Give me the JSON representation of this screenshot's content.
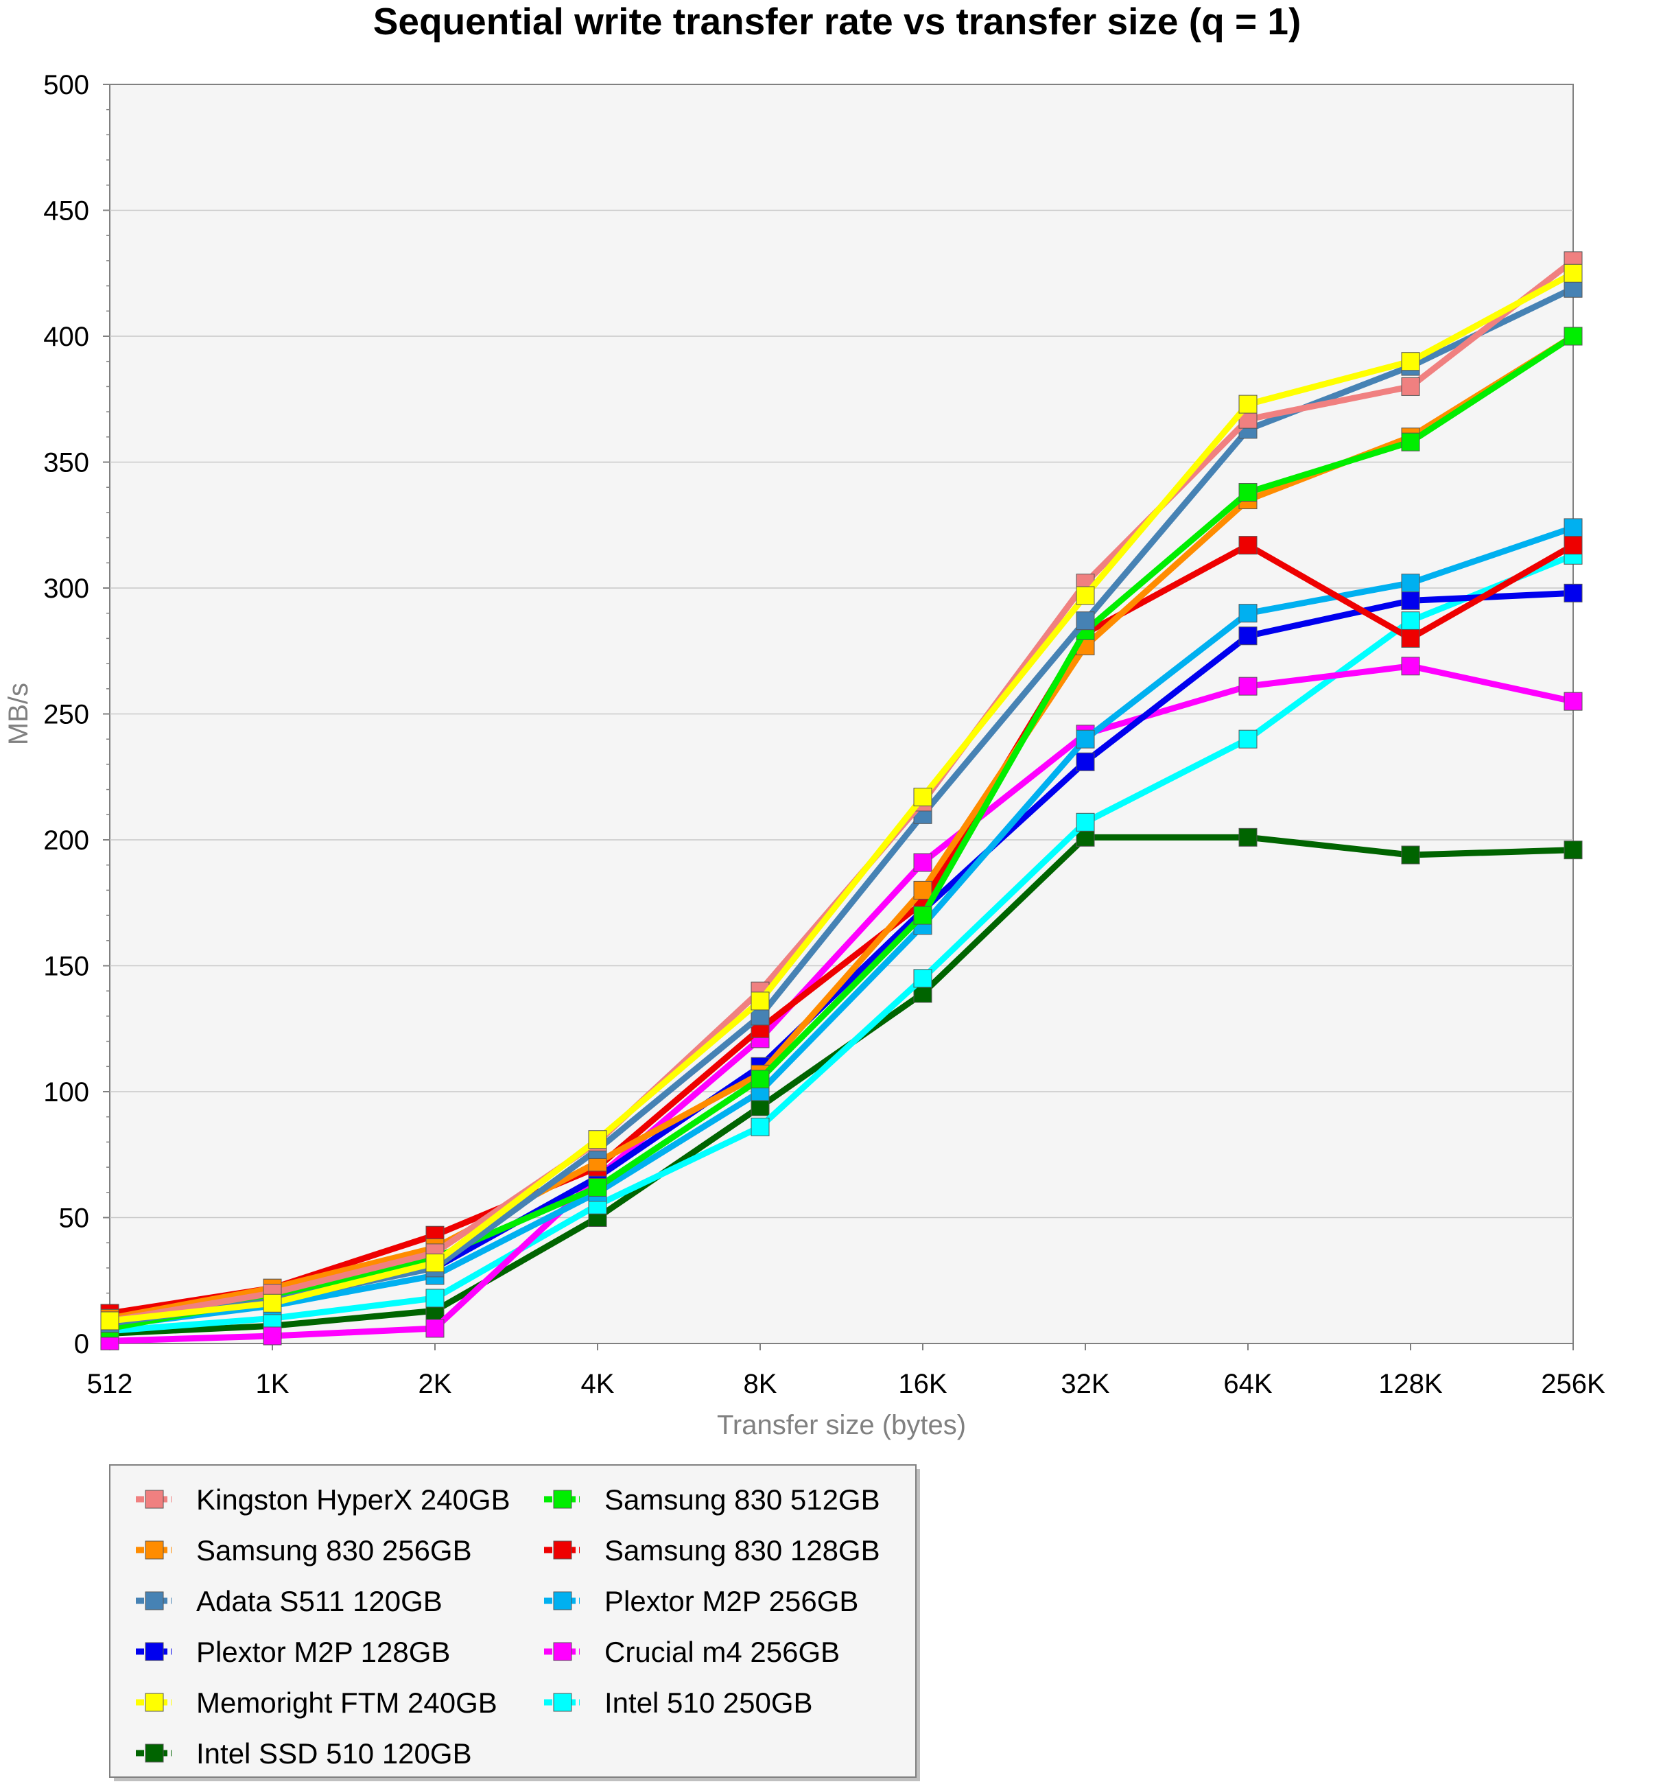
{
  "chart_data": {
    "type": "line",
    "title": "Sequential write transfer rate vs transfer size (q = 1)",
    "xlabel": "Transfer size (bytes)",
    "ylabel": "MB/s",
    "categories": [
      "512",
      "1K",
      "2K",
      "4K",
      "8K",
      "16K",
      "32K",
      "64K",
      "128K",
      "256K"
    ],
    "ylim": [
      0,
      500
    ],
    "yticks": [
      "0",
      "50",
      "100",
      "150",
      "200",
      "250",
      "300",
      "350",
      "400",
      "450",
      "500"
    ],
    "grid": "horizontal",
    "legend_position": "bottom-left",
    "series": [
      {
        "name": "Kingston HyperX 240GB",
        "color": "#F08080",
        "values": [
          9,
          20,
          36,
          80,
          140,
          215,
          302,
          367,
          380,
          430
        ]
      },
      {
        "name": "Samsung 830 512GB",
        "color": "#00EE00",
        "values": [
          6,
          18,
          34,
          62,
          105,
          170,
          283,
          338,
          358,
          400
        ]
      },
      {
        "name": "Samsung 830 256GB",
        "color": "#FF8C00",
        "values": [
          10,
          22,
          38,
          72,
          107,
          180,
          277,
          335,
          360,
          400
        ]
      },
      {
        "name": "Samsung 830 128GB",
        "color": "#EE0000",
        "values": [
          12,
          22,
          43,
          70,
          125,
          175,
          282,
          317,
          280,
          317
        ]
      },
      {
        "name": "Adata S511 120GB",
        "color": "#4682B4",
        "values": [
          8,
          17,
          30,
          77,
          130,
          210,
          287,
          363,
          388,
          419
        ]
      },
      {
        "name": "Plextor M2P 256GB",
        "color": "#00B0F0",
        "values": [
          7,
          15,
          27,
          60,
          100,
          166,
          240,
          290,
          302,
          324
        ]
      },
      {
        "name": "Plextor M2P 128GB",
        "color": "#0000EE",
        "values": [
          8,
          19,
          30,
          66,
          110,
          172,
          231,
          281,
          295,
          298
        ]
      },
      {
        "name": "Crucial m4 256GB",
        "color": "#FF00FF",
        "values": [
          1,
          3,
          6,
          66,
          121,
          191,
          242,
          261,
          269,
          255
        ]
      },
      {
        "name": "Memoright FTM 240GB",
        "color": "#FFFF00",
        "values": [
          9,
          16,
          32,
          81,
          136,
          217,
          297,
          373,
          390,
          425
        ]
      },
      {
        "name": "Intel 510 250GB",
        "color": "#00FFFF",
        "values": [
          5,
          10,
          18,
          55,
          86,
          145,
          207,
          240,
          287,
          313
        ]
      },
      {
        "name": "Intel SSD 510 120GB",
        "color": "#006400",
        "values": [
          4,
          7,
          13,
          50,
          94,
          139,
          201,
          201,
          194,
          196
        ]
      }
    ]
  }
}
